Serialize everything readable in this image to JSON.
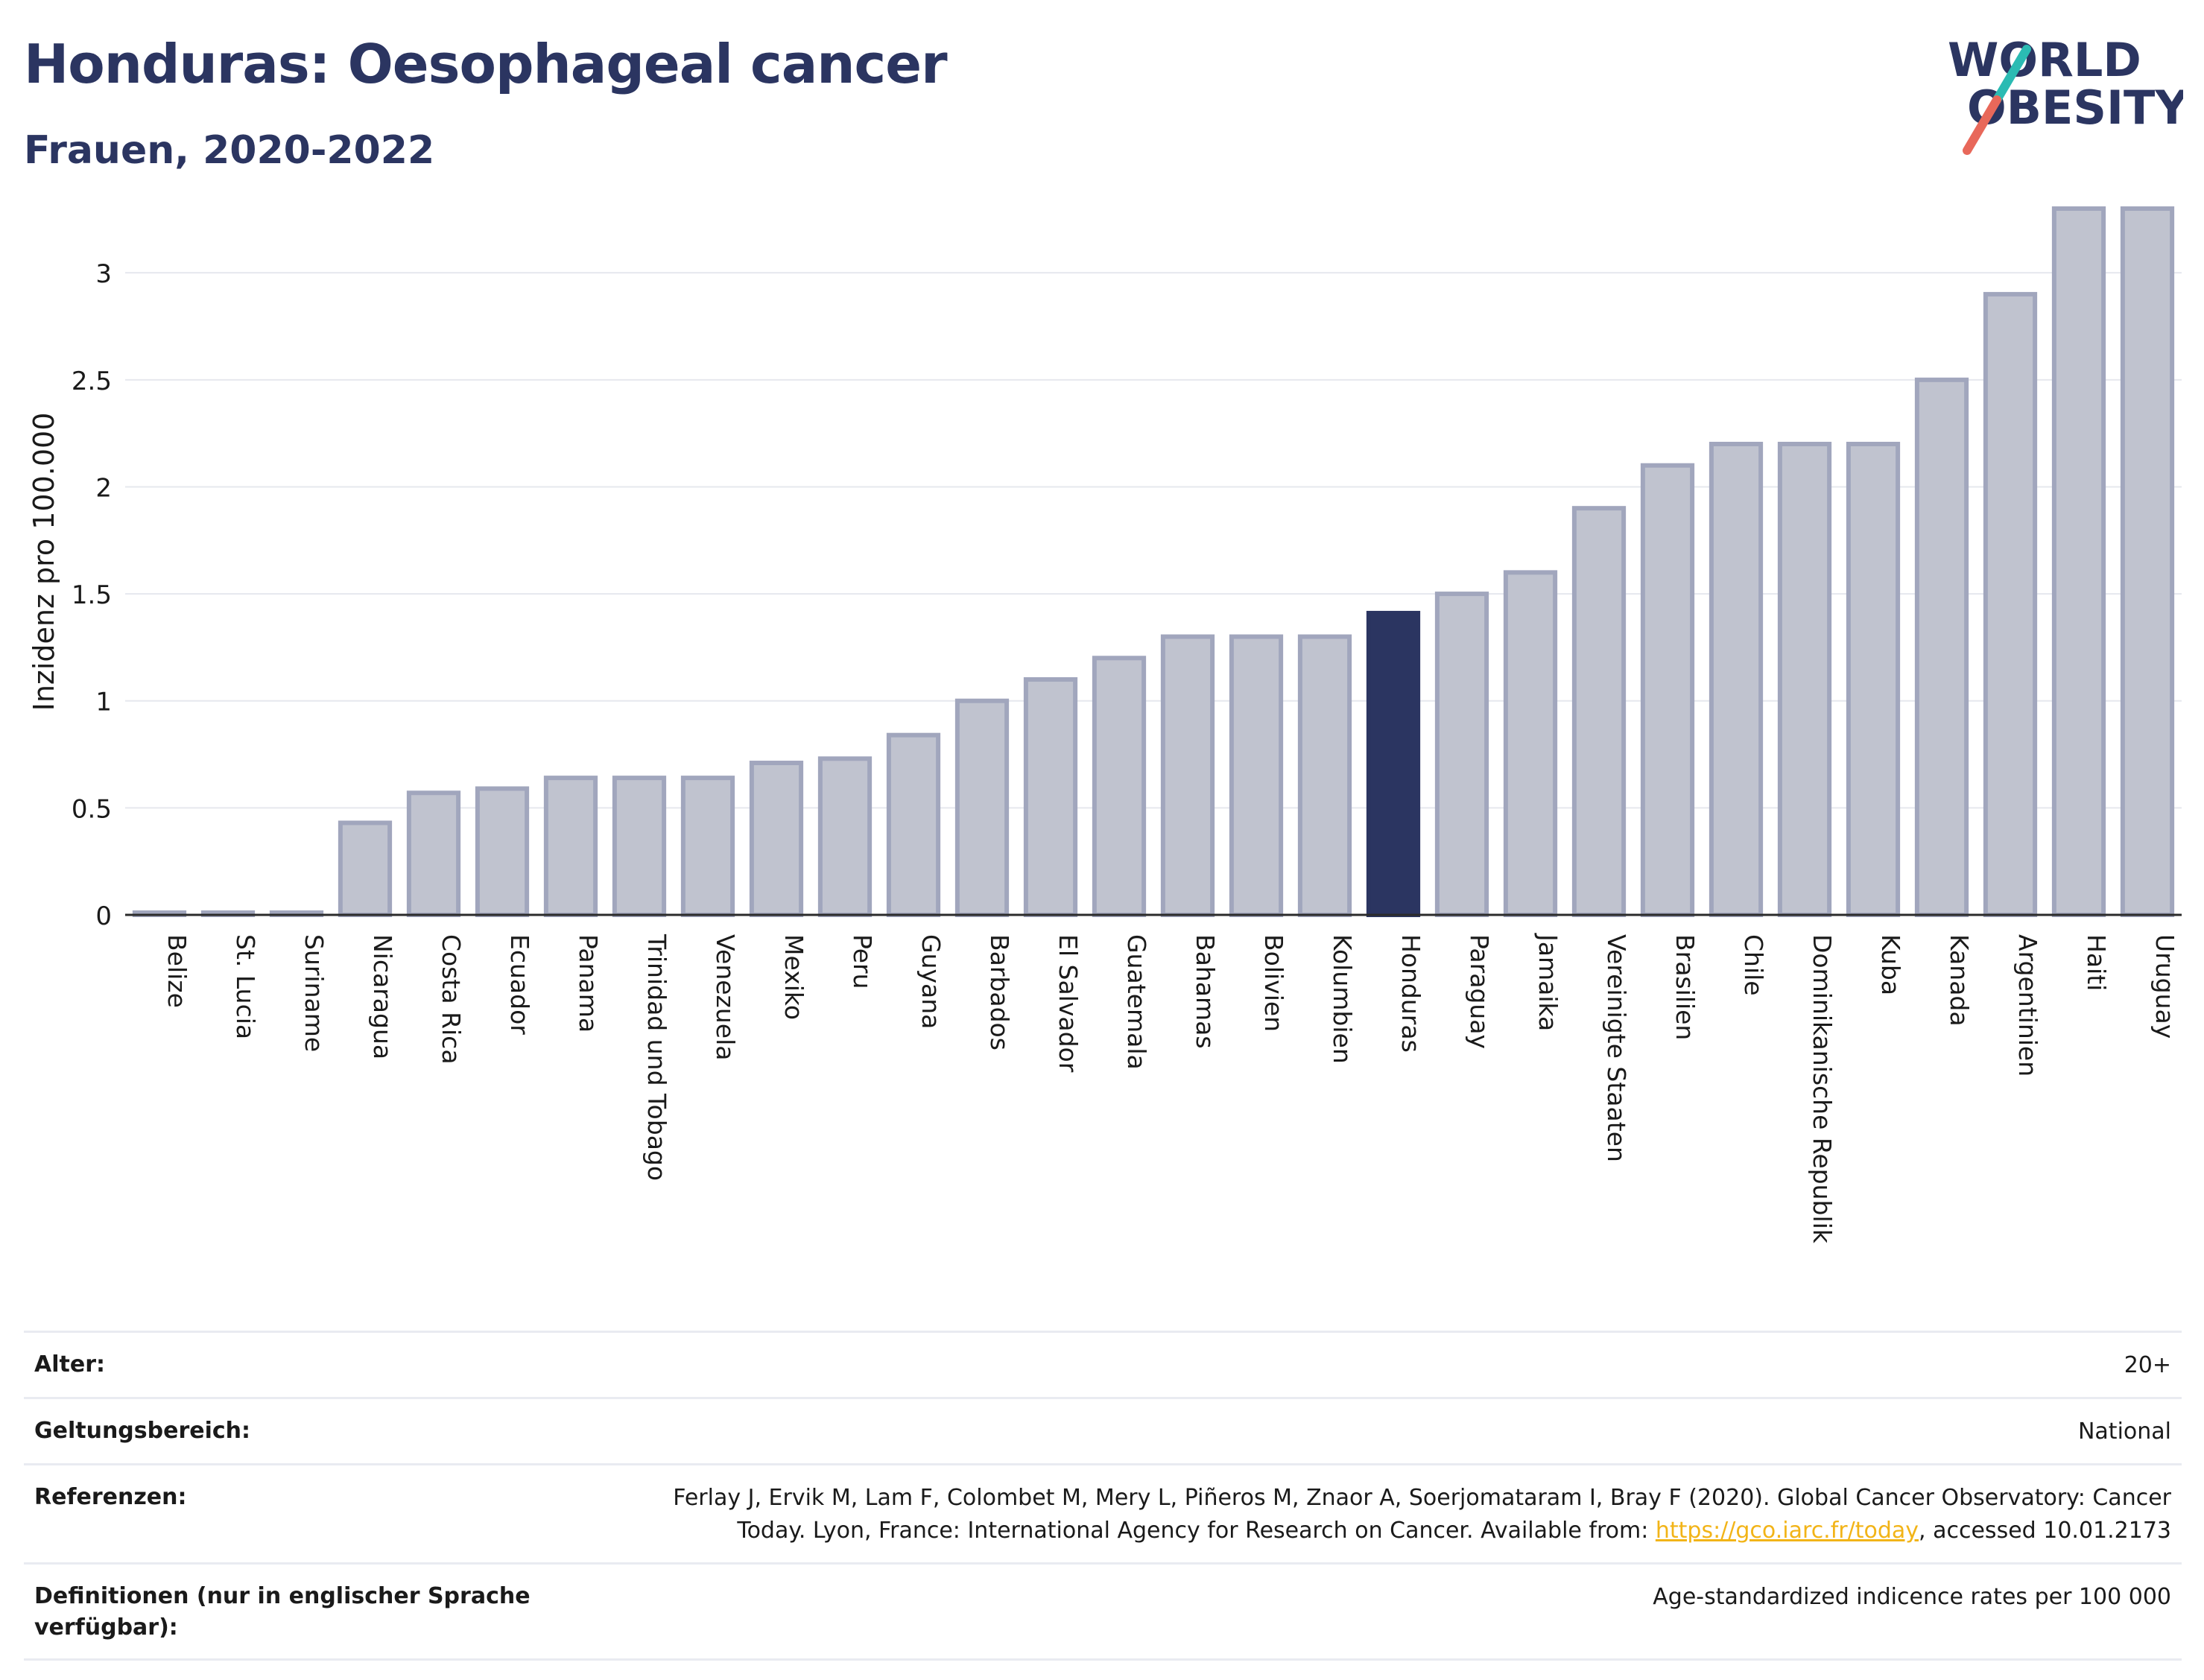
{
  "header": {
    "title": "Honduras: Oesophageal cancer",
    "subtitle": "Frauen, 2020-2022"
  },
  "logo": {
    "line1": "WORLD",
    "line2": "OBESITY",
    "colors": {
      "text": "#2b3561",
      "slash_top": "#2bbbb3",
      "slash_bottom": "#e8685a"
    }
  },
  "chart_data": {
    "type": "bar",
    "title": "Honduras: Oesophageal cancer",
    "subtitle": "Frauen, 2020-2022",
    "ylabel": "Inzidenz pro 100.000",
    "xlabel": "",
    "ylim": [
      0,
      3.3
    ],
    "yticks": [
      0,
      0.5,
      1,
      1.5,
      2,
      2.5,
      3
    ],
    "ytick_labels": [
      "0",
      "0.5",
      "1",
      "1.5",
      "2",
      "2.5",
      "3"
    ],
    "grid": true,
    "highlight": "Honduras",
    "colors": {
      "bar": "#c0c3cf",
      "bar_edge": "#a1a6bd",
      "highlight": "#2b3561",
      "grid": "#e6e8ee",
      "axis": "#2b2b2b"
    },
    "categories": [
      "Belize",
      "St. Lucia",
      "Suriname",
      "Nicaragua",
      "Costa Rica",
      "Ecuador",
      "Panama",
      "Trinidad und Tobago",
      "Venezuela",
      "Mexiko",
      "Peru",
      "Guyana",
      "Barbados",
      "El Salvador",
      "Guatemala",
      "Bahamas",
      "Bolivien",
      "Kolumbien",
      "Honduras",
      "Paraguay",
      "Jamaika",
      "Vereinigte Staaten",
      "Brasilien",
      "Chile",
      "Dominikanische Republik",
      "Kuba",
      "Kanada",
      "Argentinien",
      "Haiti",
      "Uruguay"
    ],
    "values": [
      0,
      0,
      0,
      0.43,
      0.57,
      0.59,
      0.64,
      0.64,
      0.64,
      0.71,
      0.73,
      0.84,
      1.0,
      1.1,
      1.2,
      1.3,
      1.3,
      1.3,
      1.41,
      1.5,
      1.6,
      1.9,
      2.1,
      2.2,
      2.2,
      2.2,
      2.5,
      2.9,
      3.3,
      3.3
    ]
  },
  "meta": {
    "rows": [
      {
        "label": "Alter:",
        "value": "20+"
      },
      {
        "label": "Geltungsbereich:",
        "value": "National"
      },
      {
        "label": "Referenzen:",
        "value_pre": "Ferlay J, Ervik M, Lam F, Colombet M, Mery L, Piñeros M, Znaor A, Soerjomataram I, Bray F (2020). Global Cancer Observatory: Cancer Today. Lyon, France: International Agency for Research on Cancer. Available from: ",
        "link": "https://gco.iarc.fr/today",
        "value_post": ", accessed 10.01.2173"
      },
      {
        "label": "Definitionen (nur in englischer Sprache verfügbar):",
        "value": "Age-standardized indicence rates per 100 000"
      }
    ]
  }
}
